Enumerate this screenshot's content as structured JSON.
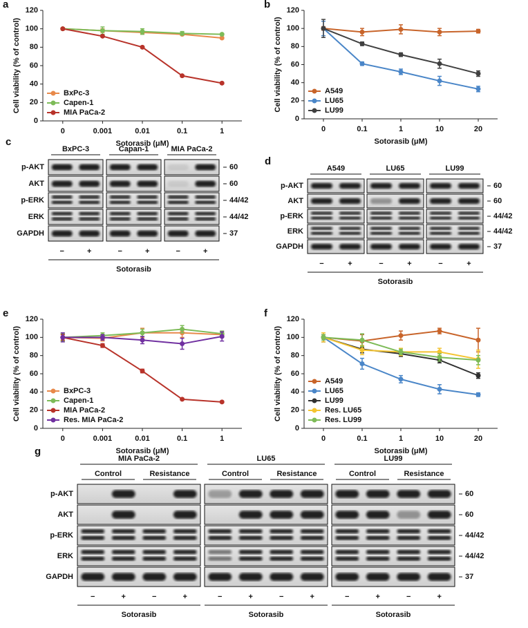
{
  "chart_data": [
    {
      "panel": "a",
      "type": "line",
      "ylabel": "Cell viability (% of control)",
      "xlabel": "Sotorasib (μM)",
      "categories": [
        "0",
        "0.001",
        "0.01",
        "0.1",
        "1"
      ],
      "ylim": [
        0,
        120
      ],
      "yticks": [
        0,
        20,
        40,
        60,
        80,
        100,
        120
      ],
      "legend": "lower-left",
      "series": [
        {
          "name": "BxPc-3",
          "color": "#e8894a",
          "values": [
            100,
            98,
            96,
            94,
            90
          ],
          "errors": [
            1,
            2,
            2,
            1,
            1
          ]
        },
        {
          "name": "Capen-1",
          "color": "#7dbb58",
          "values": [
            100,
            98,
            97,
            95,
            94
          ],
          "errors": [
            1,
            4,
            3,
            2,
            1
          ]
        },
        {
          "name": "MIA PaCa-2",
          "color": "#b8332a",
          "values": [
            100,
            92,
            80,
            49,
            41
          ],
          "errors": [
            1,
            1,
            1,
            1,
            1
          ]
        }
      ]
    },
    {
      "panel": "b",
      "type": "line",
      "ylabel": "Cell viability (% of control)",
      "xlabel": "Sotorasib (μM)",
      "categories": [
        "0",
        "0.1",
        "1",
        "10",
        "20"
      ],
      "ylim": [
        0,
        120
      ],
      "yticks": [
        0,
        20,
        40,
        60,
        80,
        100,
        120
      ],
      "legend": "lower-left",
      "series": [
        {
          "name": "A549",
          "color": "#c8642a",
          "values": [
            100,
            96,
            99,
            96,
            97
          ],
          "errors": [
            2,
            4,
            5,
            4,
            2
          ]
        },
        {
          "name": "LU65",
          "color": "#4a86c8",
          "values": [
            100,
            61,
            52,
            42,
            33
          ],
          "errors": [
            8,
            2,
            3,
            5,
            3
          ]
        },
        {
          "name": "LU99",
          "color": "#404040",
          "values": [
            100,
            83,
            71,
            61,
            50
          ],
          "errors": [
            10,
            2,
            2,
            5,
            3
          ]
        }
      ]
    },
    {
      "panel": "e",
      "type": "line",
      "ylabel": "Cell viability (% of control)",
      "xlabel": "Sotorasib (μM)",
      "categories": [
        "0",
        "0.001",
        "0.01",
        "0.1",
        "1"
      ],
      "ylim": [
        0,
        120
      ],
      "yticks": [
        0,
        20,
        40,
        60,
        80,
        100,
        120
      ],
      "legend": "lower-left",
      "series": [
        {
          "name": "BxPC-3",
          "color": "#e8894a",
          "values": [
            100,
            99,
            105,
            105,
            103
          ],
          "errors": [
            4,
            3,
            5,
            5,
            3
          ]
        },
        {
          "name": "Capen-1",
          "color": "#7dbb58",
          "values": [
            100,
            102,
            105,
            109,
            104
          ],
          "errors": [
            4,
            3,
            4,
            4,
            3
          ]
        },
        {
          "name": "MIA PaCa-2",
          "color": "#b8332a",
          "values": [
            100,
            91,
            63,
            32,
            29
          ],
          "errors": [
            3,
            2,
            2,
            1,
            1
          ]
        },
        {
          "name": "Res. MIA PaCa-2",
          "color": "#7030a0",
          "values": [
            100,
            100,
            97,
            93,
            101
          ],
          "errors": [
            5,
            3,
            4,
            6,
            5
          ]
        }
      ]
    },
    {
      "panel": "f",
      "type": "line",
      "ylabel": "Cell viability (% of control)",
      "xlabel": "Sotorasib (μM)",
      "categories": [
        "0",
        "0.1",
        "1",
        "10",
        "20"
      ],
      "ylim": [
        0,
        120
      ],
      "yticks": [
        0,
        20,
        40,
        60,
        80,
        100,
        120
      ],
      "legend": "lower-left",
      "series": [
        {
          "name": "A549",
          "color": "#c8642a",
          "values": [
            100,
            96,
            102,
            107,
            97
          ],
          "errors": [
            5,
            7,
            5,
            3,
            13
          ]
        },
        {
          "name": "LU65",
          "color": "#4a86c8",
          "values": [
            100,
            71,
            54,
            43,
            37
          ],
          "errors": [
            5,
            6,
            4,
            5,
            2
          ]
        },
        {
          "name": "LU99",
          "color": "#303030",
          "values": [
            100,
            87,
            82,
            75,
            58
          ],
          "errors": [
            3,
            4,
            3,
            3,
            3
          ]
        },
        {
          "name": "Res. LU65",
          "color": "#f4c430",
          "values": [
            100,
            86,
            84,
            84,
            76
          ],
          "errors": [
            5,
            5,
            4,
            4,
            10
          ]
        },
        {
          "name": "Res. LU99",
          "color": "#7dbb58",
          "values": [
            100,
            97,
            84,
            78,
            75
          ],
          "errors": [
            3,
            7,
            3,
            4,
            5
          ]
        }
      ]
    }
  ],
  "blots": [
    {
      "panel": "c",
      "groups": [
        "BxPC-3",
        "Capan-1",
        "MIA PaCa-2"
      ],
      "rows": [
        "p-AKT",
        "AKT",
        "p-ERK",
        "ERK",
        "GAPDH"
      ],
      "sizes": [
        "60",
        "60",
        "44/42",
        "44/42",
        "37"
      ],
      "lanes": [
        "−",
        "+"
      ],
      "treatment": "Sotorasib"
    },
    {
      "panel": "d",
      "groups": [
        "A549",
        "LU65",
        "LU99"
      ],
      "rows": [
        "p-AKT",
        "AKT",
        "p-ERK",
        "ERK",
        "GAPDH"
      ],
      "sizes": [
        "60",
        "60",
        "44/42",
        "44/42",
        "37"
      ],
      "lanes": [
        "−",
        "+"
      ],
      "treatment": "Sotorasib"
    },
    {
      "panel": "g",
      "groups": [
        "MIA PaCa-2",
        "LU65",
        "LU99"
      ],
      "subgroups": [
        "Control",
        "Resistance"
      ],
      "rows": [
        "p-AKT",
        "AKT",
        "p-ERK",
        "ERK",
        "GAPDH"
      ],
      "sizes": [
        "60",
        "60",
        "44/42",
        "44/42",
        "37"
      ],
      "lanes": [
        "−",
        "+",
        "−",
        "+"
      ],
      "treatment": "Sotorasib"
    }
  ]
}
